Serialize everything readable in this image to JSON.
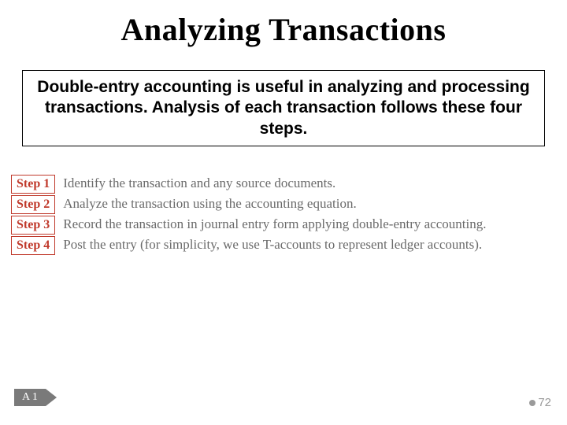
{
  "title": "Analyzing Transactions",
  "intro": "Double-entry accounting is useful in analyzing and processing transactions. Analysis of each transaction follows these four steps.",
  "steps": [
    {
      "label": "Step 1",
      "desc": "Identify the transaction and any source documents."
    },
    {
      "label": "Step 2",
      "desc": "Analyze the transaction using the accounting equation."
    },
    {
      "label": "Step 3",
      "desc": "Record the transaction in journal entry form applying double-entry accounting."
    },
    {
      "label": "Step 4",
      "desc": "Post the entry (for simplicity, we use T-accounts to represent ledger accounts)."
    }
  ],
  "ref_tag": "A 1",
  "page_number": "72",
  "colors": {
    "step_border": "#c0392b",
    "step_text": "#6a6a6a",
    "ref_bg": "#7a7a7a",
    "page_num": "#9a9a9a"
  }
}
